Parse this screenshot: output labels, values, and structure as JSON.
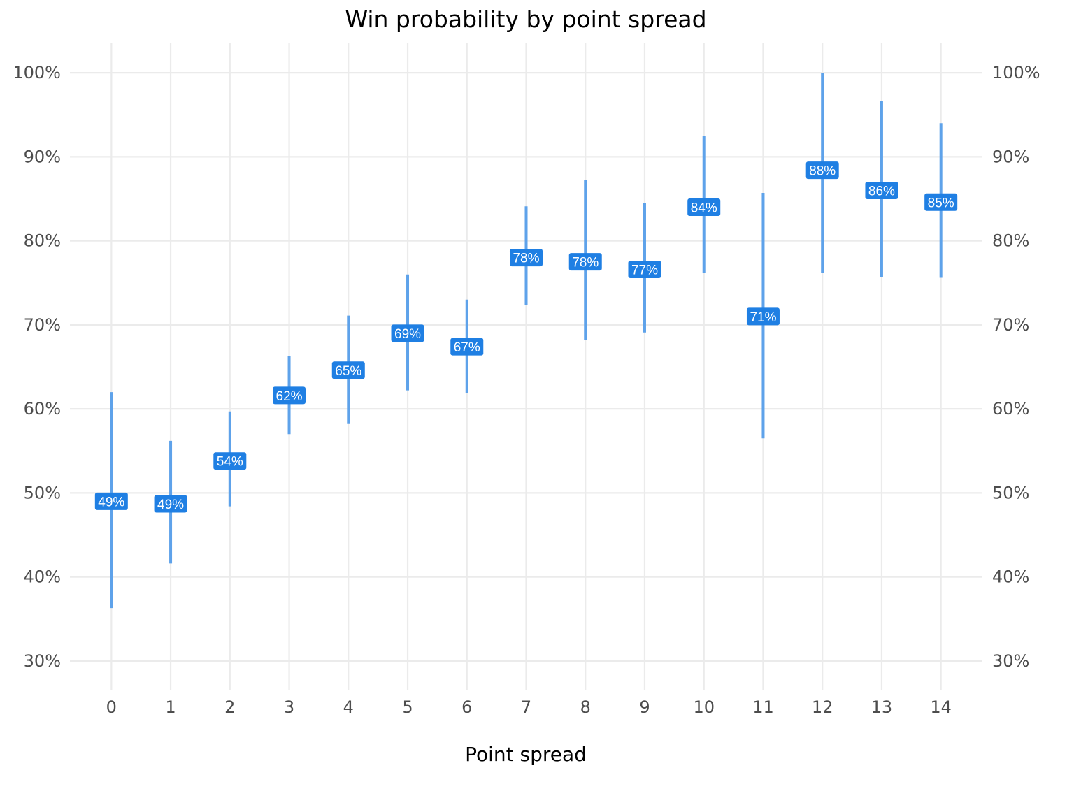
{
  "chart_data": {
    "type": "point-range",
    "title": "Win probability by point spread",
    "xlabel": "Point spread",
    "ylabel": "",
    "x": [
      0,
      1,
      2,
      3,
      4,
      5,
      6,
      7,
      8,
      9,
      10,
      11,
      12,
      13,
      14
    ],
    "y_ticks": [
      "30%",
      "40%",
      "50%",
      "60%",
      "70%",
      "80%",
      "90%",
      "100%"
    ],
    "y_tick_values": [
      0.3,
      0.4,
      0.5,
      0.6,
      0.7,
      0.8,
      0.9,
      1.0
    ],
    "ylim": [
      0.265,
      1.035
    ],
    "xlim": [
      -0.7,
      14.7
    ],
    "secondary_y_axis": true,
    "grid": true,
    "series": [
      {
        "estimate": [
          0.49,
          0.487,
          0.538,
          0.616,
          0.646,
          0.69,
          0.674,
          0.78,
          0.775,
          0.766,
          0.84,
          0.71,
          0.884,
          0.86,
          0.846
        ],
        "lower": [
          0.363,
          0.416,
          0.484,
          0.57,
          0.582,
          0.622,
          0.619,
          0.724,
          0.682,
          0.691,
          0.762,
          0.565,
          0.762,
          0.757,
          0.756
        ],
        "upper": [
          0.62,
          0.562,
          0.597,
          0.663,
          0.711,
          0.76,
          0.73,
          0.841,
          0.872,
          0.845,
          0.925,
          0.857,
          1.0,
          0.966,
          0.94
        ],
        "labels": [
          "49%",
          "49%",
          "54%",
          "62%",
          "65%",
          "69%",
          "67%",
          "78%",
          "78%",
          "77%",
          "84%",
          "71%",
          "88%",
          "86%",
          "85%"
        ]
      }
    ],
    "colors": {
      "range": "#5ea2ea",
      "label_fill": "#1f7fe3",
      "label_text": "#ffffff",
      "grid": "#ebebeb",
      "tick_text": "#4d4d4d"
    }
  }
}
